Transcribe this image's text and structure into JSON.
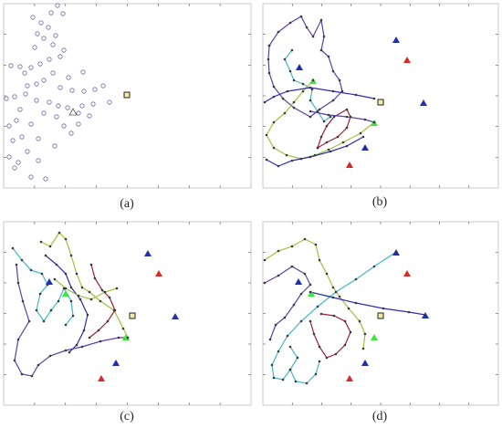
{
  "captions": [
    "(a)",
    "(b)",
    "(c)",
    "(d)"
  ],
  "colors": {
    "frame": "#c8c8c8",
    "tick": "#555555",
    "node_stroke": "#6a6aaa",
    "node_fill": "#ffffff",
    "blue_triangle": "#1f2fb0",
    "red_triangle": "#d62a2a",
    "green_triangle": "#3ce63c",
    "depot_fill": "#f6e9a3",
    "route_purple": "#5b3fa8",
    "route_blue": "#2c2cb8",
    "route_cyan": "#3fb8cf",
    "route_green": "#9ec23c",
    "route_red": "#a0203c",
    "route_dots": "#3a3a3a"
  }
}
